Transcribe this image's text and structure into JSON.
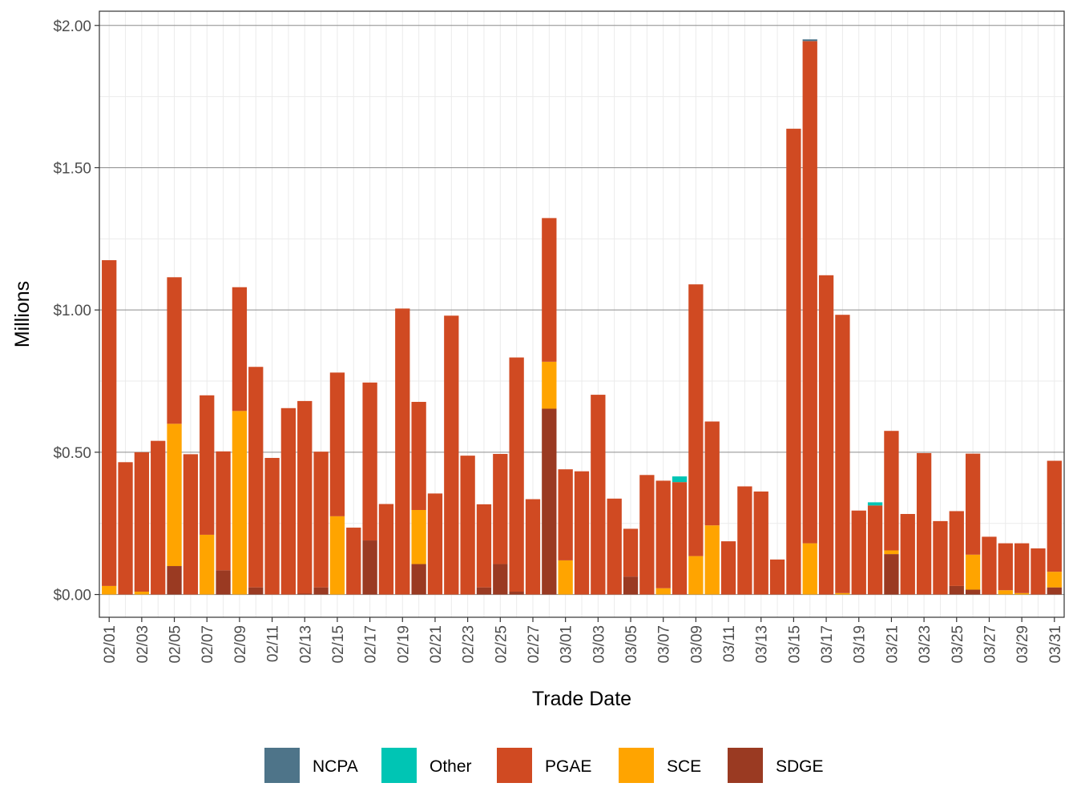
{
  "chart_data": {
    "type": "bar",
    "stacked": true,
    "title": "",
    "xlabel": "Trade Date",
    "ylabel": "Millions",
    "ylim": [
      -0.08,
      2.05
    ],
    "y_ticks": [
      0,
      0.5,
      1.0,
      1.5,
      2.0
    ],
    "y_tick_labels": [
      "$0.00",
      "$0.50",
      "$1.00",
      "$1.50",
      "$2.00"
    ],
    "grid": true,
    "legend_position": "bottom",
    "categories": [
      "02/01",
      "02/02",
      "02/03",
      "02/04",
      "02/05",
      "02/06",
      "02/07",
      "02/08",
      "02/09",
      "02/10",
      "02/11",
      "02/12",
      "02/13",
      "02/14",
      "02/15",
      "02/16",
      "02/17",
      "02/18",
      "02/19",
      "02/20",
      "02/21",
      "02/22",
      "02/23",
      "02/24",
      "02/25",
      "02/26",
      "02/27",
      "02/28",
      "03/01",
      "03/02",
      "03/03",
      "03/04",
      "03/05",
      "03/06",
      "03/07",
      "03/08",
      "03/09",
      "03/10",
      "03/11",
      "03/12",
      "03/13",
      "03/14",
      "03/15",
      "03/16",
      "03/17",
      "03/18",
      "03/19",
      "03/20",
      "03/21",
      "03/22",
      "03/23",
      "03/24",
      "03/25",
      "03/26",
      "03/27",
      "03/28",
      "03/29",
      "03/30",
      "03/31"
    ],
    "x_tick_labels": [
      "02/01",
      "02/03",
      "02/05",
      "02/07",
      "02/09",
      "02/11",
      "02/13",
      "02/15",
      "02/17",
      "02/19",
      "02/21",
      "02/23",
      "02/25",
      "02/27",
      "03/01",
      "03/03",
      "03/05",
      "03/07",
      "03/09",
      "03/11",
      "03/13",
      "03/15",
      "03/17",
      "03/19",
      "03/21",
      "03/23",
      "03/25",
      "03/27",
      "03/29",
      "03/31"
    ],
    "series": [
      {
        "name": "NCPA",
        "color": "#4e7489",
        "values": [
          0,
          0,
          0,
          0,
          0,
          0,
          0,
          0,
          0,
          0,
          0,
          0,
          0,
          0,
          0,
          0,
          0,
          0,
          0,
          0,
          0,
          0,
          0,
          0,
          0,
          0,
          0,
          0,
          0,
          0,
          0,
          0,
          0,
          0,
          0,
          0,
          0,
          0,
          0,
          0,
          0,
          0,
          0,
          0.006,
          0,
          0,
          0,
          0,
          0,
          0,
          0,
          0,
          0,
          0,
          0,
          0,
          0,
          0,
          0
        ]
      },
      {
        "name": "Other",
        "color": "#00c5b4",
        "values": [
          0,
          0,
          0,
          0,
          0,
          0,
          0,
          0,
          0,
          0,
          0,
          0,
          0,
          0,
          0,
          0,
          0,
          0,
          0,
          0,
          0,
          0,
          0,
          0,
          0,
          0,
          0,
          0,
          0,
          0,
          0,
          0,
          0,
          0,
          0,
          0.02,
          0,
          0,
          0,
          0,
          0,
          0,
          0,
          0,
          0,
          0,
          0,
          0.011,
          0,
          0,
          0,
          0,
          0,
          0,
          0,
          0,
          0,
          0,
          0
        ]
      },
      {
        "name": "PGAE",
        "color": "#d04a22",
        "values": [
          1.145,
          0.465,
          0.49,
          0.54,
          0.515,
          0.493,
          0.49,
          0.418,
          0.435,
          0.775,
          0.48,
          0.655,
          0.677,
          0.477,
          0.505,
          0.235,
          0.555,
          0.318,
          1.005,
          0.38,
          0.355,
          0.98,
          0.488,
          0.292,
          0.387,
          0.823,
          0.335,
          0.505,
          0.32,
          0.433,
          0.702,
          0.337,
          0.168,
          0.42,
          0.378,
          0.395,
          0.955,
          0.365,
          0.187,
          0.38,
          0.362,
          0.123,
          1.637,
          1.765,
          1.122,
          0.978,
          0.295,
          0.313,
          0.42,
          0.283,
          0.497,
          0.258,
          0.263,
          0.355,
          0.203,
          0.165,
          0.175,
          0.162,
          0.39
        ]
      },
      {
        "name": "SCE",
        "color": "#ffa400",
        "values": [
          0.03,
          0,
          0.01,
          0,
          0.5,
          0,
          0.21,
          0,
          0.645,
          0,
          0,
          0,
          0,
          0,
          0.275,
          0,
          0,
          0,
          0,
          0.19,
          0,
          0,
          0,
          0,
          0,
          0,
          0,
          0.165,
          0.12,
          0,
          0,
          0,
          0,
          0,
          0.022,
          0,
          0.135,
          0.243,
          0,
          0,
          0,
          0,
          0,
          0.18,
          0,
          0.005,
          0,
          0,
          0.013,
          0,
          0,
          0,
          0,
          0.123,
          0,
          0.015,
          0.005,
          0,
          0.055
        ]
      },
      {
        "name": "SDGE",
        "color": "#9a3a22",
        "values": [
          0,
          0,
          0,
          0,
          0.1,
          0,
          0,
          0.085,
          0,
          0.025,
          0,
          0,
          0.003,
          0.025,
          0,
          0,
          0.19,
          0,
          0,
          0.107,
          0,
          0,
          0,
          0.025,
          0.107,
          0.01,
          0,
          0.653,
          0,
          0,
          0,
          0,
          0.063,
          0,
          0,
          0,
          0,
          0,
          0,
          0,
          0,
          0,
          0,
          0,
          0,
          0,
          0,
          0,
          0.142,
          0,
          0,
          0,
          0.03,
          0.017,
          0,
          0,
          0,
          0,
          0.025
        ]
      }
    ],
    "stack_order": [
      "SDGE",
      "SCE",
      "PGAE",
      "Other",
      "NCPA"
    ]
  }
}
